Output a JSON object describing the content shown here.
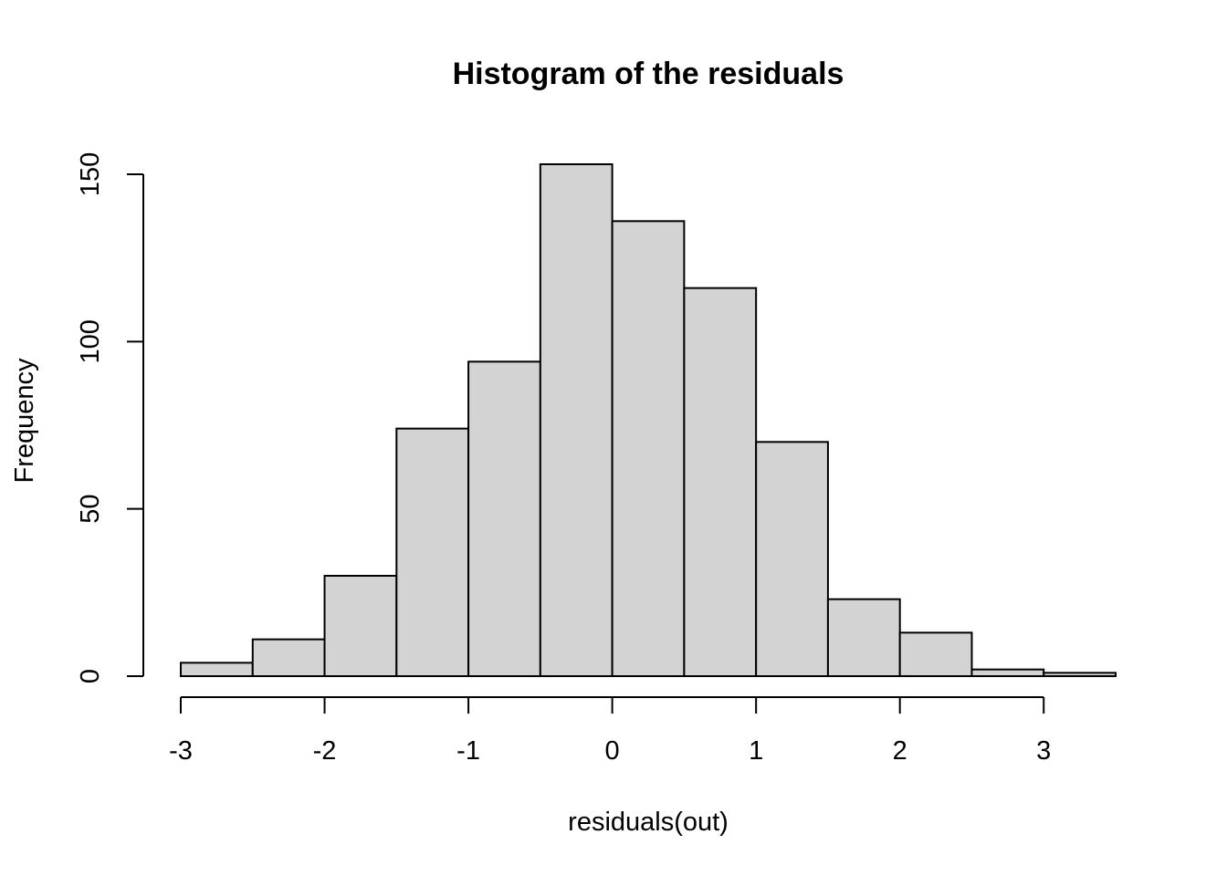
{
  "chart_data": {
    "type": "bar",
    "title": "Histogram of the residuals",
    "xlabel": "residuals(out)",
    "ylabel": "Frequency",
    "bins": [
      {
        "from": -3.0,
        "to": -2.5,
        "count": 4
      },
      {
        "from": -2.5,
        "to": -2.0,
        "count": 11
      },
      {
        "from": -2.0,
        "to": -1.5,
        "count": 30
      },
      {
        "from": -1.5,
        "to": -1.0,
        "count": 74
      },
      {
        "from": -1.0,
        "to": -0.5,
        "count": 94
      },
      {
        "from": -0.5,
        "to": 0.0,
        "count": 153
      },
      {
        "from": 0.0,
        "to": 0.5,
        "count": 136
      },
      {
        "from": 0.5,
        "to": 1.0,
        "count": 116
      },
      {
        "from": 1.0,
        "to": 1.5,
        "count": 70
      },
      {
        "from": 1.5,
        "to": 2.0,
        "count": 23
      },
      {
        "from": 2.0,
        "to": 2.5,
        "count": 13
      },
      {
        "from": 2.5,
        "to": 3.0,
        "count": 2
      },
      {
        "from": 3.0,
        "to": 3.5,
        "count": 1
      }
    ],
    "x_ticks": [
      -3,
      -2,
      -1,
      0,
      1,
      2,
      3
    ],
    "x_tick_labels": [
      "-3",
      "-2",
      "-1",
      "0",
      "1",
      "2",
      "3"
    ],
    "y_ticks": [
      0,
      50,
      100,
      150
    ],
    "y_tick_labels": [
      "0",
      "50",
      "100",
      "150"
    ],
    "xlim": [
      -3.0,
      3.5
    ],
    "ylim": [
      0,
      153
    ],
    "grid": false,
    "bar_color": "#d3d3d3",
    "edge_color": "#000000"
  }
}
